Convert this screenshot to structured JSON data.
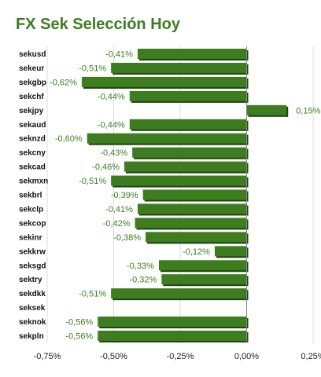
{
  "title": "FX Sek Selección Hoy",
  "colors": {
    "title": "#3d7d20",
    "bar": "#3d7d20",
    "bar_shadow": "#1e4410",
    "value_label": "#3d7d20",
    "grid": "#dcdcdc",
    "zero_line": "#888888"
  },
  "chart_data": {
    "type": "bar",
    "orientation": "horizontal",
    "title": "FX Sek Selección Hoy",
    "xlabel": "",
    "ylabel": "",
    "xlim": [
      -0.75,
      0.25
    ],
    "x_ticks": [
      -0.75,
      -0.5,
      -0.25,
      0.0,
      0.25
    ],
    "x_tick_labels": [
      "-0,75%",
      "-0,50%",
      "-0,25%",
      "0,00%",
      "0,25%"
    ],
    "grid": "vertical",
    "legend": "none",
    "categories": [
      "sekusd",
      "sekeur",
      "sekgbp",
      "sekchf",
      "sekjpy",
      "sekaud",
      "seknzd",
      "sekcny",
      "sekcad",
      "sekmxn",
      "sekbrl",
      "sekclp",
      "sekcop",
      "sekinr",
      "sekkrw",
      "seksgd",
      "sektry",
      "sekdkk",
      "seksek",
      "seknok",
      "sekpln"
    ],
    "values": [
      -0.41,
      -0.51,
      -0.62,
      -0.44,
      0.15,
      -0.44,
      -0.6,
      -0.43,
      -0.46,
      -0.51,
      -0.39,
      -0.41,
      -0.42,
      -0.38,
      -0.12,
      -0.33,
      -0.32,
      -0.51,
      null,
      -0.56,
      -0.56
    ],
    "value_labels": [
      "-0,41%",
      "-0,51%",
      "-0,62%",
      "-0,44%",
      "0,15%",
      "-0,44%",
      "-0,60%",
      "-0,43%",
      "-0,46%",
      "-0,51%",
      "-0,39%",
      "-0,41%",
      "-0,42%",
      "-0,38%",
      "-0,12%",
      "-0,33%",
      "-0,32%",
      "-0,51%",
      "",
      "-0,56%",
      "-0,56%"
    ]
  }
}
